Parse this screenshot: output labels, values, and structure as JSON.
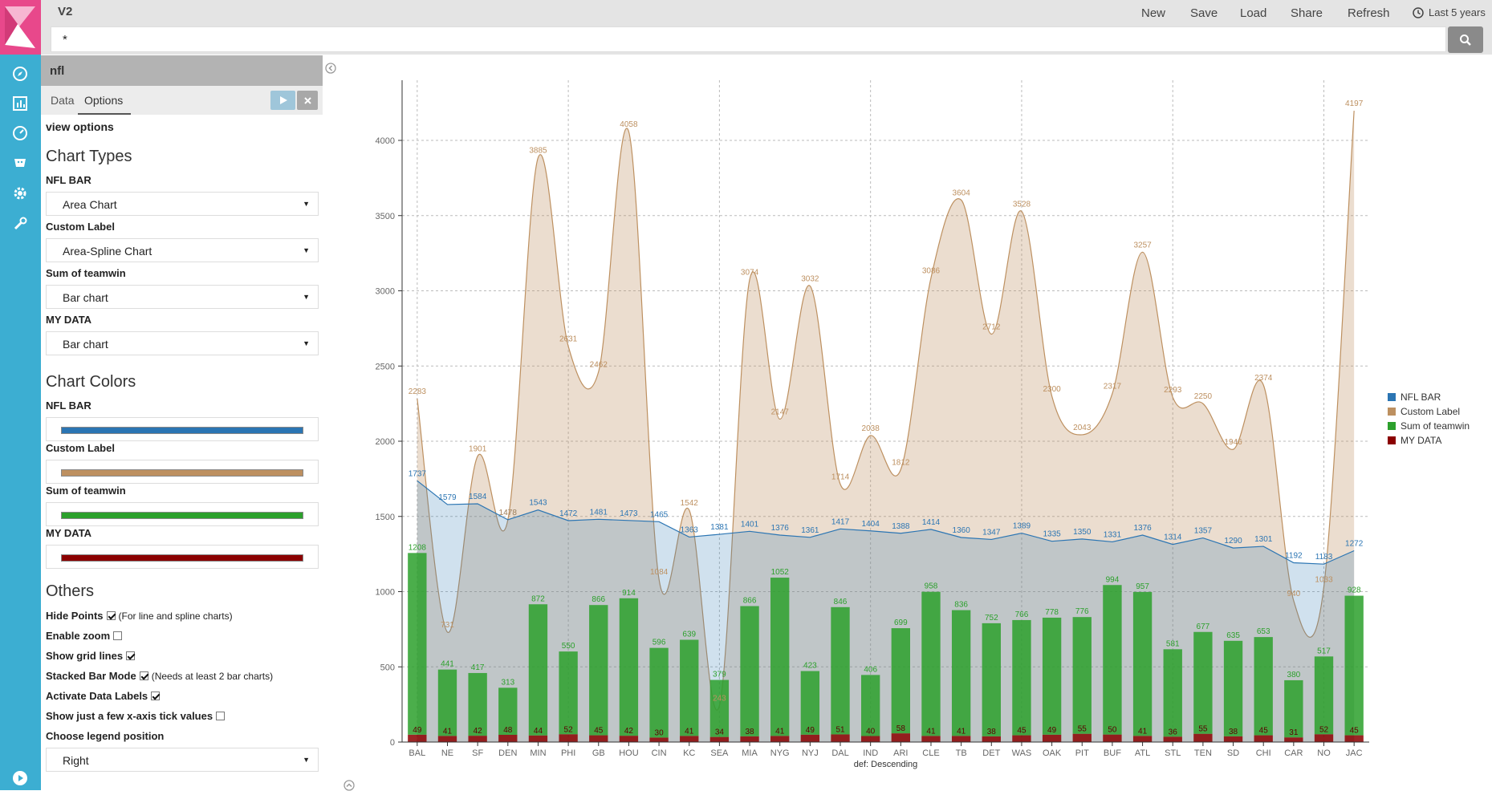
{
  "topbar": {
    "title": "V2",
    "buttons": [
      "New",
      "Save",
      "Load",
      "Share",
      "Refresh"
    ],
    "time_range": "Last 5 years"
  },
  "query": {
    "value": "*"
  },
  "sidebar": {
    "index_name": "nfl",
    "tabs": [
      "Data",
      "Options"
    ],
    "section_title": "view options",
    "chart_types": {
      "heading": "Chart Types",
      "items": [
        {
          "label": "NFL BAR",
          "value": "Area Chart"
        },
        {
          "label": "Custom Label",
          "value": "Area-Spline Chart"
        },
        {
          "label": "Sum of teamwin",
          "value": "Bar chart"
        },
        {
          "label": "MY DATA",
          "value": "Bar chart"
        }
      ]
    },
    "chart_colors": {
      "heading": "Chart Colors",
      "items": [
        {
          "label": "NFL BAR",
          "color": "#2b75b3"
        },
        {
          "label": "Custom Label",
          "color": "#bd9060"
        },
        {
          "label": "Sum of teamwin",
          "color": "#2ca02c"
        },
        {
          "label": "MY DATA",
          "color": "#8b0000"
        }
      ]
    },
    "others": {
      "heading": "Others",
      "options": [
        {
          "label": "Hide Points",
          "checked": true,
          "hint": "(For line and spline charts)"
        },
        {
          "label": "Enable zoom",
          "checked": false,
          "hint": ""
        },
        {
          "label": "Show grid lines",
          "checked": true,
          "hint": ""
        },
        {
          "label": "Stacked Bar Mode",
          "checked": true,
          "hint": "(Needs at least 2 bar charts)"
        },
        {
          "label": "Activate Data Labels",
          "checked": true,
          "hint": ""
        },
        {
          "label": "Show just a few x-axis tick values",
          "checked": false,
          "hint": ""
        }
      ],
      "legend_position_label": "Choose legend position",
      "legend_position_value": "Right"
    }
  },
  "chart_data": {
    "type": "combo",
    "xlabel": "def: Descending",
    "ylim": [
      0,
      4400
    ],
    "yticks": [
      0,
      500,
      1000,
      1500,
      2000,
      2500,
      3000,
      3500,
      4000
    ],
    "grid": true,
    "legend_position": "right",
    "categories": [
      "BAL",
      "NE",
      "SF",
      "DEN",
      "MIN",
      "PHI",
      "GB",
      "HOU",
      "CIN",
      "KC",
      "SEA",
      "MIA",
      "NYG",
      "NYJ",
      "DAL",
      "IND",
      "ARI",
      "CLE",
      "TB",
      "DET",
      "WAS",
      "OAK",
      "PIT",
      "BUF",
      "ATL",
      "STL",
      "TEN",
      "SD",
      "CHI",
      "CAR",
      "NO",
      "JAC"
    ],
    "series": [
      {
        "name": "NFL BAR",
        "type": "area",
        "color": "#2b75b3",
        "values": [
          1737,
          1579,
          1584,
          1478,
          1543,
          1472,
          1481,
          1473,
          1465,
          1363,
          1381,
          1401,
          1376,
          1361,
          1417,
          1404,
          1388,
          1414,
          1360,
          1347,
          1389,
          1335,
          1350,
          1331,
          1376,
          1314,
          1357,
          1290,
          1301,
          1192,
          1183,
          1272
        ]
      },
      {
        "name": "Custom Label",
        "type": "area-spline",
        "color": "#bd9060",
        "values": [
          2283,
          731,
          1901,
          1478,
          3885,
          2631,
          2462,
          4058,
          1084,
          1542,
          243,
          3074,
          2147,
          3032,
          1714,
          2038,
          1812,
          3086,
          3604,
          2712,
          3528,
          2300,
          2043,
          2317,
          3257,
          2293,
          2250,
          1946,
          2374,
          940,
          1033,
          4197
        ]
      },
      {
        "name": "Sum of teamwin",
        "type": "bar",
        "color": "#2ca02c",
        "values": [
          1208,
          441,
          417,
          313,
          872,
          550,
          866,
          914,
          596,
          639,
          379,
          866,
          1052,
          423,
          846,
          406,
          699,
          958,
          836,
          752,
          766,
          778,
          776,
          994,
          957,
          581,
          677,
          635,
          653,
          380,
          517,
          928
        ]
      },
      {
        "name": "MY DATA",
        "type": "bar",
        "color": "#8b0000",
        "values": [
          49,
          41,
          42,
          48,
          44,
          52,
          45,
          42,
          30,
          41,
          34,
          38,
          41,
          49,
          51,
          40,
          58,
          41,
          41,
          38,
          45,
          49,
          55,
          50,
          41,
          36,
          55,
          38,
          45,
          31,
          52,
          45
        ]
      }
    ]
  }
}
